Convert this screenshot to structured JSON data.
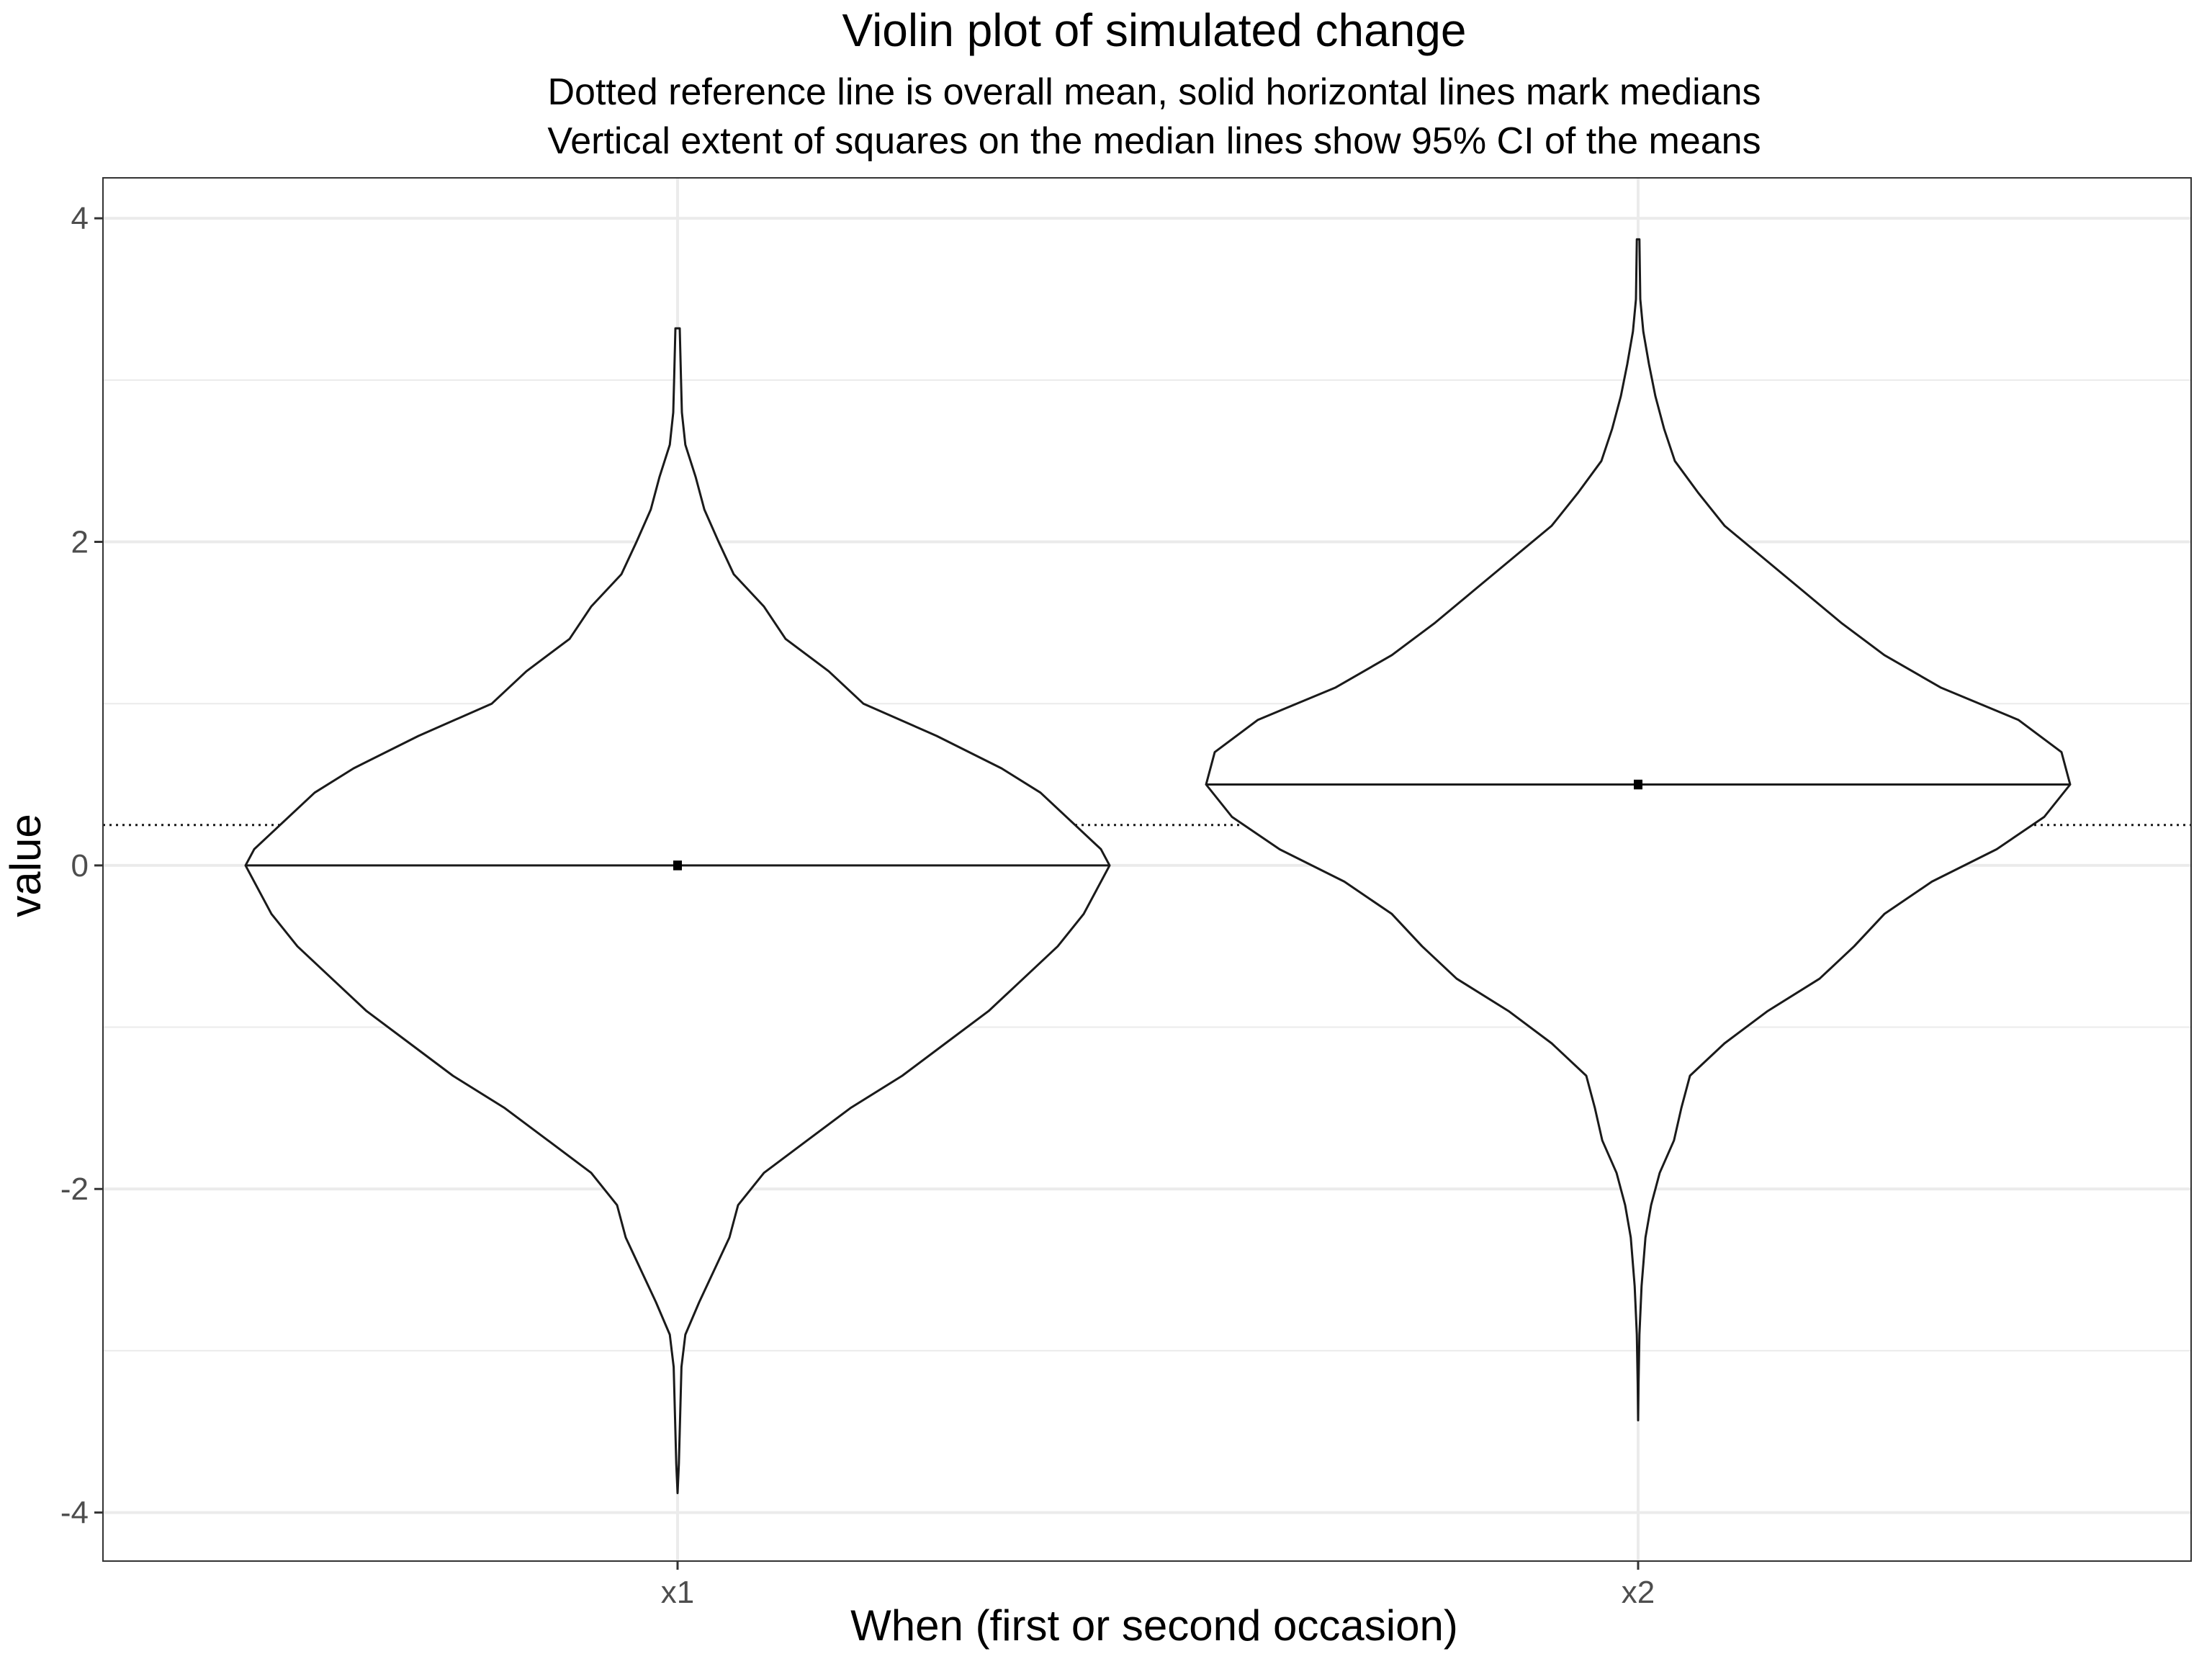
{
  "chart_data": {
    "type": "violin",
    "title": "Violin plot of simulated change",
    "subtitle_lines": [
      "Dotted reference line is overall mean, solid horizontal lines mark medians",
      "Vertical extent of squares on the median lines show 95% CI of the means"
    ],
    "xlabel": "When (first or second occasion)",
    "ylabel": "value",
    "categories": [
      "x1",
      "x2"
    ],
    "ylim": [
      -4.3,
      4.25
    ],
    "y_ticks": [
      -4,
      -2,
      0,
      2,
      4
    ],
    "y_tick_labels": [
      "-4",
      "-2",
      "0",
      "2",
      "4"
    ],
    "grid": true,
    "overall_mean": 0.25,
    "colors": {
      "outline": "#1a1a1a",
      "grid": "#ebebeb",
      "panel_border": "#333333",
      "tick_label": "#4d4d4d"
    },
    "series": [
      {
        "category": "x1",
        "median": 0.0,
        "mean": 0.0,
        "ci95": [
          -0.03,
          0.03
        ],
        "density_profile": [
          [
            -3.88,
            0.0
          ],
          [
            -3.7,
            0.003
          ],
          [
            -3.4,
            0.006
          ],
          [
            -3.1,
            0.009
          ],
          [
            -2.9,
            0.018
          ],
          [
            -2.7,
            0.05
          ],
          [
            -2.5,
            0.085
          ],
          [
            -2.3,
            0.12
          ],
          [
            -2.1,
            0.14
          ],
          [
            -1.9,
            0.2
          ],
          [
            -1.7,
            0.3
          ],
          [
            -1.5,
            0.4
          ],
          [
            -1.3,
            0.52
          ],
          [
            -1.1,
            0.62
          ],
          [
            -0.9,
            0.72
          ],
          [
            -0.7,
            0.8
          ],
          [
            -0.5,
            0.88
          ],
          [
            -0.3,
            0.94
          ],
          [
            -0.1,
            0.98
          ],
          [
            0.0,
            1.0
          ],
          [
            0.1,
            0.98
          ],
          [
            0.25,
            0.92
          ],
          [
            0.45,
            0.84
          ],
          [
            0.6,
            0.75
          ],
          [
            0.8,
            0.6
          ],
          [
            1.0,
            0.43
          ],
          [
            1.2,
            0.35
          ],
          [
            1.4,
            0.25
          ],
          [
            1.6,
            0.2
          ],
          [
            1.8,
            0.13
          ],
          [
            2.0,
            0.095
          ],
          [
            2.2,
            0.062
          ],
          [
            2.4,
            0.042
          ],
          [
            2.6,
            0.018
          ],
          [
            2.8,
            0.01
          ],
          [
            3.0,
            0.008
          ],
          [
            3.32,
            0.005
          ]
        ]
      },
      {
        "category": "x2",
        "median": 0.5,
        "mean": 0.5,
        "ci95": [
          0.47,
          0.53
        ],
        "density_profile": [
          [
            -3.43,
            0.0
          ],
          [
            -3.2,
            0.001
          ],
          [
            -2.9,
            0.003
          ],
          [
            -2.6,
            0.008
          ],
          [
            -2.3,
            0.017
          ],
          [
            -2.1,
            0.03
          ],
          [
            -1.9,
            0.05
          ],
          [
            -1.7,
            0.083
          ],
          [
            -1.5,
            0.1
          ],
          [
            -1.3,
            0.12
          ],
          [
            -1.1,
            0.2
          ],
          [
            -0.9,
            0.3
          ],
          [
            -0.7,
            0.42
          ],
          [
            -0.5,
            0.5
          ],
          [
            -0.3,
            0.57
          ],
          [
            -0.1,
            0.68
          ],
          [
            0.1,
            0.83
          ],
          [
            0.3,
            0.94
          ],
          [
            0.5,
            1.0
          ],
          [
            0.7,
            0.98
          ],
          [
            0.9,
            0.88
          ],
          [
            1.1,
            0.7
          ],
          [
            1.3,
            0.57
          ],
          [
            1.5,
            0.47
          ],
          [
            1.7,
            0.38
          ],
          [
            1.9,
            0.29
          ],
          [
            2.1,
            0.2
          ],
          [
            2.3,
            0.14
          ],
          [
            2.5,
            0.085
          ],
          [
            2.7,
            0.06
          ],
          [
            2.9,
            0.04
          ],
          [
            3.1,
            0.025
          ],
          [
            3.3,
            0.012
          ],
          [
            3.5,
            0.005
          ],
          [
            3.87,
            0.003
          ]
        ]
      }
    ]
  }
}
